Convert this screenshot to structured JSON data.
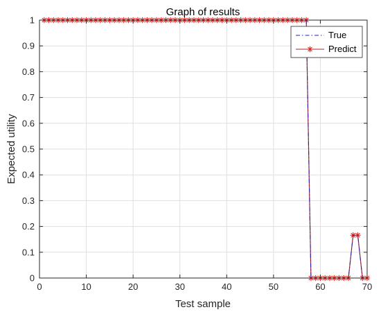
{
  "chart_data": {
    "type": "line",
    "title": "Graph of results",
    "xlabel": "Test sample",
    "ylabel": "Expected utility",
    "xlim": [
      0,
      70
    ],
    "ylim": [
      0,
      1
    ],
    "grid": true,
    "legend_position": "top-right",
    "x_ticks": [
      "0",
      "10",
      "20",
      "30",
      "40",
      "50",
      "60",
      "70"
    ],
    "y_ticks": [
      "0",
      "0.1",
      "0.2",
      "0.3",
      "0.4",
      "0.5",
      "0.6",
      "0.7",
      "0.8",
      "0.9",
      "1"
    ],
    "x": [
      1,
      2,
      3,
      4,
      5,
      6,
      7,
      8,
      9,
      10,
      11,
      12,
      13,
      14,
      15,
      16,
      17,
      18,
      19,
      20,
      21,
      22,
      23,
      24,
      25,
      26,
      27,
      28,
      29,
      30,
      31,
      32,
      33,
      34,
      35,
      36,
      37,
      38,
      39,
      40,
      41,
      42,
      43,
      44,
      45,
      46,
      47,
      48,
      49,
      50,
      51,
      52,
      53,
      54,
      55,
      56,
      57,
      58,
      59,
      60,
      61,
      62,
      63,
      64,
      65,
      66,
      67,
      68,
      69,
      70
    ],
    "series": [
      {
        "name": "True",
        "style": "dash-dot",
        "color": "#1f1fbf",
        "values": [
          1,
          1,
          1,
          1,
          1,
          1,
          1,
          1,
          1,
          1,
          1,
          1,
          1,
          1,
          1,
          1,
          1,
          1,
          1,
          1,
          1,
          1,
          1,
          1,
          1,
          1,
          1,
          1,
          1,
          1,
          1,
          1,
          1,
          1,
          1,
          1,
          1,
          1,
          1,
          1,
          1,
          1,
          1,
          1,
          1,
          1,
          1,
          1,
          1,
          1,
          1,
          1,
          1,
          1,
          1,
          1,
          1,
          0,
          0,
          0,
          0,
          0,
          0,
          0,
          0,
          0,
          0.166,
          0.166,
          0,
          0
        ]
      },
      {
        "name": "Predict",
        "style": "solid-asterisk",
        "color": "#a52a2a",
        "marker_color": "#e8201a",
        "values": [
          1,
          1,
          1,
          1,
          1,
          1,
          1,
          1,
          1,
          1,
          1,
          1,
          1,
          1,
          1,
          1,
          1,
          1,
          1,
          1,
          1,
          1,
          1,
          1,
          1,
          1,
          1,
          1,
          1,
          1,
          1,
          1,
          1,
          1,
          1,
          1,
          1,
          1,
          1,
          1,
          1,
          1,
          1,
          1,
          1,
          1,
          1,
          1,
          1,
          1,
          1,
          1,
          1,
          1,
          1,
          1,
          1,
          0,
          0,
          0,
          0,
          0,
          0,
          0,
          0,
          0,
          0.166,
          0.166,
          0,
          0
        ]
      }
    ]
  }
}
